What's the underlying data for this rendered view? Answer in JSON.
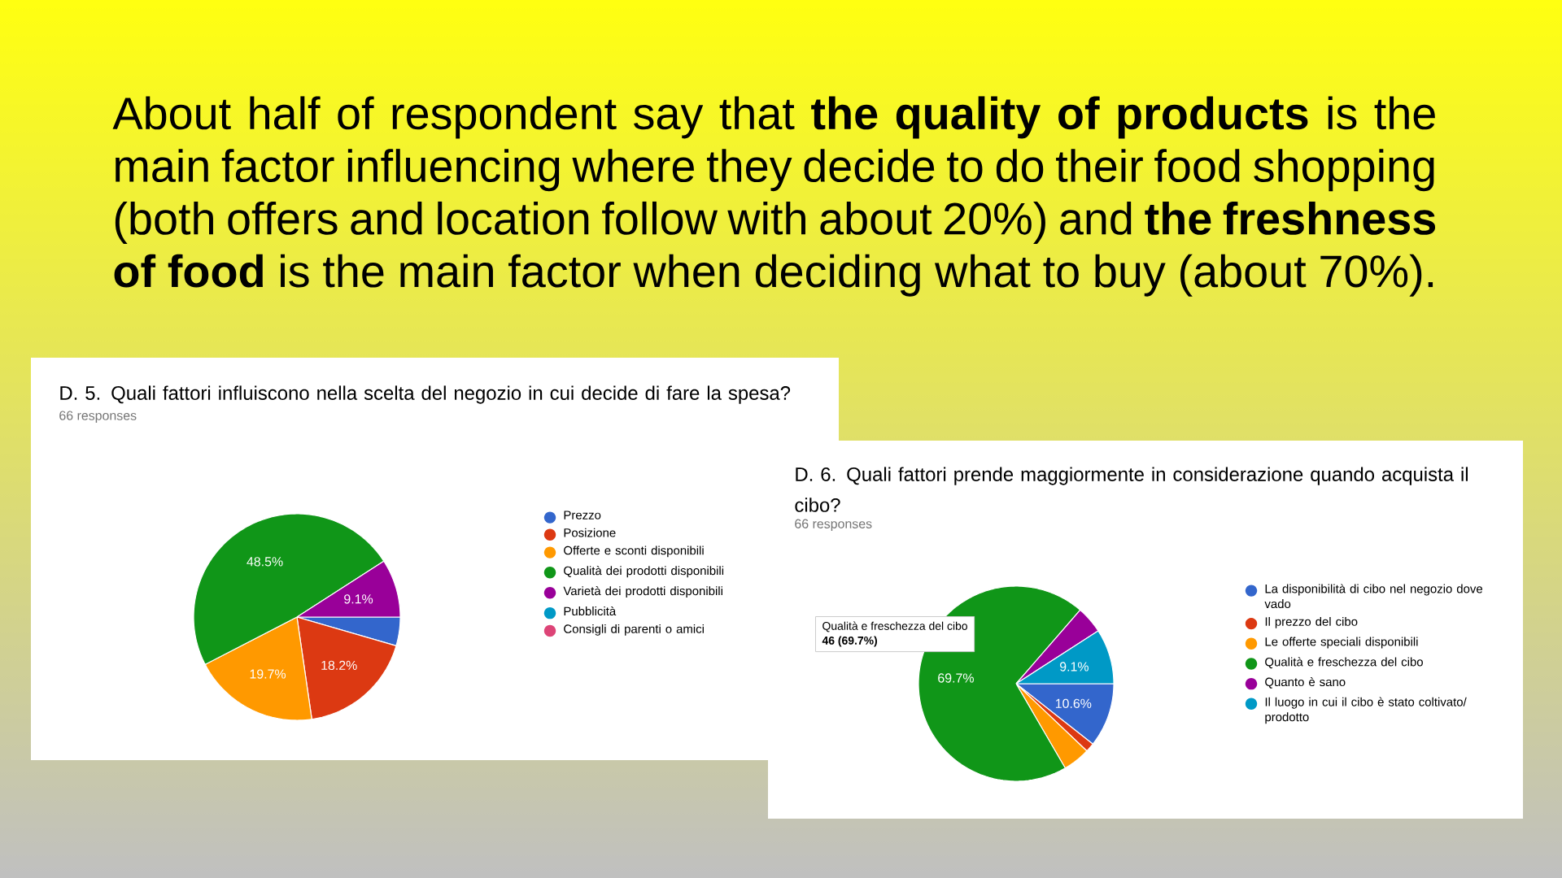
{
  "chart_data": [
    {
      "type": "pie",
      "title": "D. 5. Quali fattori influiscono nella scelta del negozio in cui decide di fare la spesa?",
      "subtitle": "66 responses",
      "annotations": [
        "About half of respondent say that **the quality of products** is the main factor influencing where they decide to do their food shopping (both offers and location follow with about 20%) and **the freshness of food** is the main factor when deciding what to buy (about 70%)."
      ],
      "categories": [
        "Prezzo",
        "Posizione",
        "Offerte e sconti disponibili",
        "Qualità dei prodotti disponibili",
        "Varietà dei prodotti disponibili",
        "Pubblicità",
        "Consigli di parenti o amici"
      ],
      "values": [
        4.5,
        18.2,
        19.7,
        48.5,
        9.1,
        0,
        0
      ],
      "value_labels": [
        null,
        "18.2%",
        "19.7%",
        "48.5%",
        "9.1%",
        null,
        null
      ],
      "colors": [
        "#3366cc",
        "#dc3912",
        "#ff9900",
        "#109618",
        "#990099",
        "#0099c6",
        "#dd4477"
      ],
      "legend": "right"
    },
    {
      "type": "pie",
      "title": "D. 6. Quali fattori prende maggiormente in considerazione quando acquista il cibo?",
      "subtitle": "66 responses",
      "annotations": [
        "Qualità e freschezza del cibo",
        "46 (69.7%)"
      ],
      "categories": [
        "La disponibilità di cibo nel negozio dove vado",
        "Il prezzo del cibo",
        "Le offerte speciali disponibili",
        "Qualità e freschezza del cibo",
        "Quanto è sano",
        "Il luogo in cui il cibo è stato coltivato/ prodotto"
      ],
      "values": [
        10.6,
        1.5,
        4.5,
        69.7,
        4.5,
        9.1
      ],
      "value_labels": [
        "10.6%",
        null,
        null,
        "69.7%",
        null,
        "9.1%"
      ],
      "colors": [
        "#3366cc",
        "#dc3912",
        "#ff9900",
        "#109618",
        "#990099",
        "#0099c6"
      ],
      "legend": "right"
    }
  ]
}
